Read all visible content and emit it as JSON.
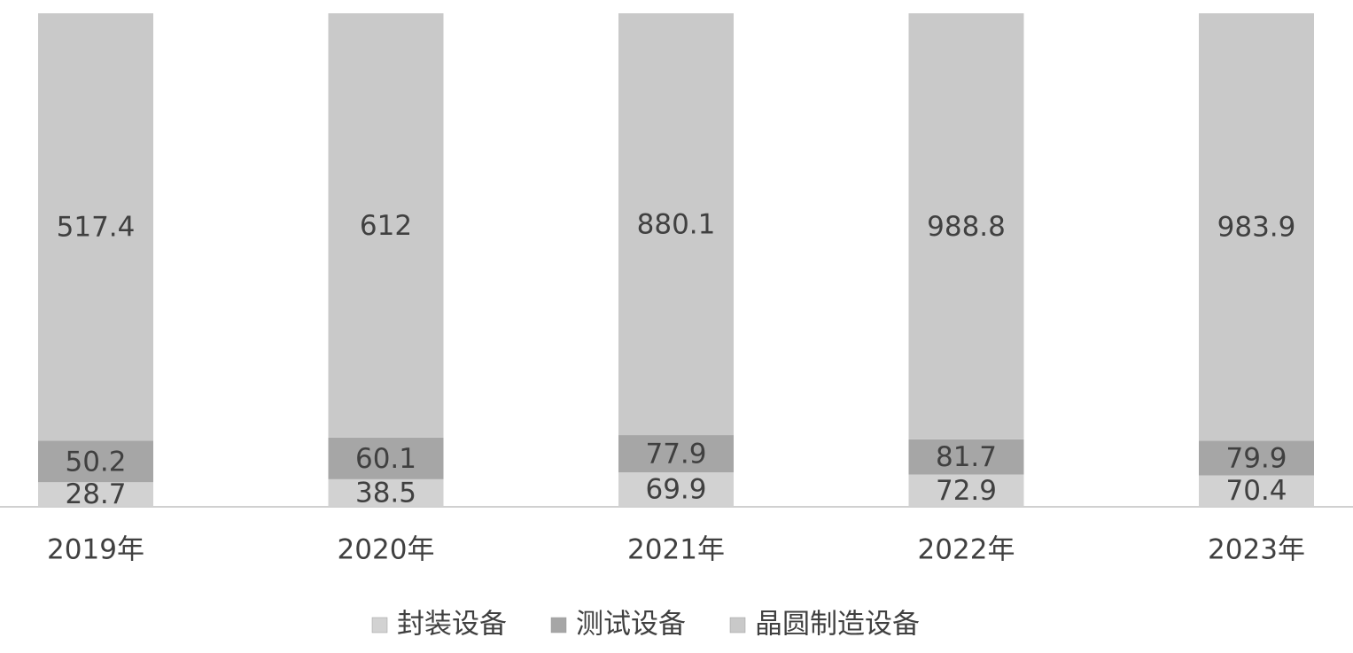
{
  "chart_data": {
    "type": "bar",
    "stacking": "percent",
    "categories": [
      "2019年",
      "2020年",
      "2021年",
      "2022年",
      "2023年"
    ],
    "series": [
      {
        "name": "封装设备",
        "color": "#d2d2d2",
        "values": [
          28.7,
          38.5,
          69.9,
          72.9,
          70.4
        ]
      },
      {
        "name": "测试设备",
        "color": "#a6a6a6",
        "values": [
          50.2,
          60.1,
          77.9,
          81.7,
          79.9
        ]
      },
      {
        "name": "晶圆制造设备",
        "color": "#c9c9c9",
        "values": [
          517.4,
          612,
          880.1,
          988.8,
          983.9
        ]
      }
    ]
  }
}
